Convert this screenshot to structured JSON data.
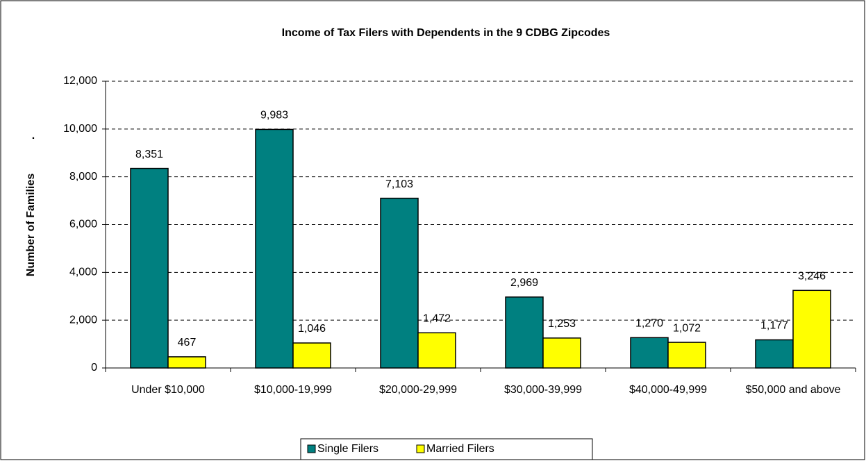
{
  "chart_data": {
    "type": "bar",
    "title": "Income of Tax Filers with Dependents in the 9 CDBG Zipcodes",
    "y_label": "Number of Families",
    "annotation": ".",
    "categories": [
      "Under $10,000",
      "$10,000-19,999",
      "$20,000-29,999",
      "$30,000-39,999",
      "$40,000-49,999",
      "$50,000 and above"
    ],
    "series": [
      {
        "name": "Single Filers",
        "color": "#008080",
        "values": [
          8351,
          9983,
          7103,
          2969,
          1270,
          1177
        ],
        "value_labels": [
          "8,351",
          "9,983",
          "7,103",
          "2,969",
          "1,270",
          "1,177"
        ]
      },
      {
        "name": "Married Filers",
        "color": "#ffff00",
        "values": [
          467,
          1046,
          1472,
          1253,
          1072,
          3246
        ],
        "value_labels": [
          "467",
          "1,046",
          "1,472",
          "1,253",
          "1,072",
          "3,246"
        ]
      }
    ],
    "ylim": [
      0,
      12000
    ],
    "yticks": [
      0,
      {
        "value": 2000,
        "label": "2,000"
      },
      {
        "value": 4000,
        "label": "4,000"
      },
      {
        "value": 6000,
        "label": "6,000"
      },
      {
        "value": 8000,
        "label": "8,000"
      },
      {
        "value": 10000,
        "label": "10,000"
      },
      {
        "value": 12000,
        "label": "12,000"
      }
    ],
    "grid": true,
    "legend": "bottom"
  }
}
